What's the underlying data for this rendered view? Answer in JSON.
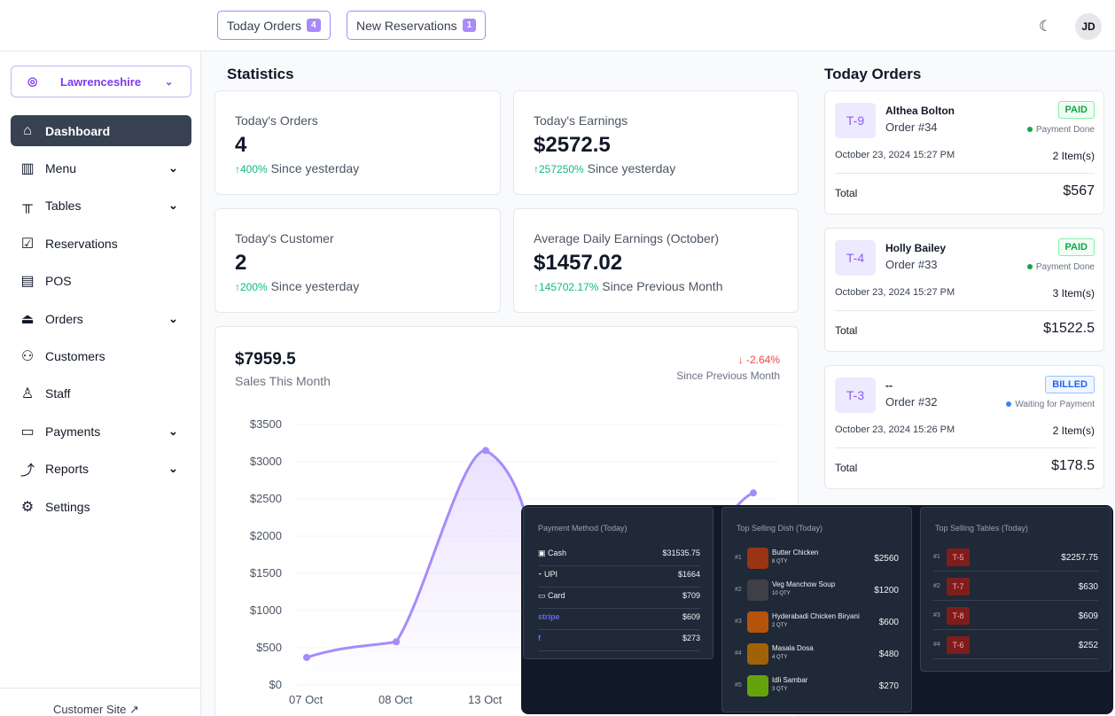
{
  "topbar": {
    "today_orders_label": "Today Orders",
    "today_orders_count": "4",
    "new_reservations_label": "New Reservations",
    "new_reservations_count": "1",
    "avatar_initials": "JD"
  },
  "sidebar": {
    "location": "Lawrenceshire",
    "items": [
      {
        "label": "Dashboard",
        "icon": "home-icon",
        "active": true
      },
      {
        "label": "Menu",
        "icon": "menu-book-icon",
        "chevron": true
      },
      {
        "label": "Tables",
        "icon": "table-icon",
        "chevron": true
      },
      {
        "label": "Reservations",
        "icon": "calendar-check-icon"
      },
      {
        "label": "POS",
        "icon": "pos-icon"
      },
      {
        "label": "Orders",
        "icon": "cloche-icon",
        "chevron": true
      },
      {
        "label": "Customers",
        "icon": "users-icon"
      },
      {
        "label": "Staff",
        "icon": "staff-icon"
      },
      {
        "label": "Payments",
        "icon": "wallet-icon",
        "chevron": true
      },
      {
        "label": "Reports",
        "icon": "chart-trend-icon",
        "chevron": true
      },
      {
        "label": "Settings",
        "icon": "gear-icon"
      }
    ],
    "customer_site": "Customer Site"
  },
  "statistics": {
    "title": "Statistics",
    "cards": [
      {
        "label": "Today's Orders",
        "value": "4",
        "change": "400%",
        "since": "Since yesterday"
      },
      {
        "label": "Today's Earnings",
        "value": "$2572.5",
        "change": "257250%",
        "since": "Since yesterday"
      },
      {
        "label": "Today's Customer",
        "value": "2",
        "change": "200%",
        "since": "Since yesterday"
      },
      {
        "label": "Average Daily Earnings (October)",
        "value": "$1457.02",
        "change": "145702.17%",
        "since": "Since Previous Month"
      }
    ]
  },
  "sales": {
    "value": "$7959.5",
    "label": "Sales This Month",
    "change": "-2.64%",
    "since": "Since Previous Month"
  },
  "chart_data": {
    "type": "area",
    "title": "",
    "xlabel": "",
    "ylabel": "",
    "y_ticks": [
      "$3500",
      "$3000",
      "$2500",
      "$2000",
      "$1500",
      "$1000",
      "$500",
      "$0"
    ],
    "ylim": [
      0,
      3500
    ],
    "categories": [
      "07 Oct",
      "08 Oct",
      "13 Oct"
    ],
    "visible_points": [
      {
        "x": "07 Oct",
        "y": 370
      },
      {
        "x": "08 Oct",
        "y": 580
      },
      {
        "x": "13 Oct",
        "y": 3150
      }
    ],
    "trailing_point_y": 2580,
    "color": "#a78bfa",
    "grid": true
  },
  "today_orders": {
    "title": "Today Orders",
    "total_label": "Total",
    "orders": [
      {
        "table": "T-9",
        "customer": "Althea Bolton",
        "order": "Order #34",
        "status": "PAID",
        "payment_status": "Payment Done",
        "date": "October 23, 2024 15:27 PM",
        "items": "2 Item(s)",
        "total": "$567"
      },
      {
        "table": "T-4",
        "customer": "Holly Bailey",
        "order": "Order #33",
        "status": "PAID",
        "payment_status": "Payment Done",
        "date": "October 23, 2024 15:27 PM",
        "items": "3 Item(s)",
        "total": "$1522.5"
      },
      {
        "table": "T-3",
        "customer": "--",
        "order": "Order #32",
        "status": "BILLED",
        "payment_status": "Waiting for Payment",
        "date": "October 23, 2024 15:26 PM",
        "items": "2 Item(s)",
        "total": "$178.5"
      }
    ]
  },
  "payment_methods": {
    "title": "Payment Method (Today)",
    "rows": [
      {
        "name": "Cash",
        "value": "$31535.75"
      },
      {
        "name": "UPI",
        "value": "$1664"
      },
      {
        "name": "Card",
        "value": "$709"
      },
      {
        "name": "stripe",
        "value": "$609"
      },
      {
        "name": "f",
        "value": "$273"
      }
    ]
  },
  "top_dishes": {
    "title": "Top Selling Dish (Today)",
    "rows": [
      {
        "rank": "#1",
        "name": "Butter Chicken",
        "qty": "8 QTY",
        "value": "$2560"
      },
      {
        "rank": "#2",
        "name": "Veg Manchow Soup",
        "qty": "10 QTY",
        "value": "$1200"
      },
      {
        "rank": "#3",
        "name": "Hyderabadi Chicken Biryani",
        "qty": "2 QTY",
        "value": "$600"
      },
      {
        "rank": "#4",
        "name": "Masala Dosa",
        "qty": "4 QTY",
        "value": "$480"
      },
      {
        "rank": "#5",
        "name": "Idli Sambar",
        "qty": "3 QTY",
        "value": "$270"
      }
    ]
  },
  "top_tables": {
    "title": "Top Selling Tables (Today)",
    "rows": [
      {
        "rank": "#1",
        "table": "T-5",
        "value": "$2257.75"
      },
      {
        "rank": "#2",
        "table": "T-7",
        "value": "$630"
      },
      {
        "rank": "#3",
        "table": "T-8",
        "value": "$609"
      },
      {
        "rank": "#4",
        "table": "T-6",
        "value": "$252"
      }
    ]
  }
}
